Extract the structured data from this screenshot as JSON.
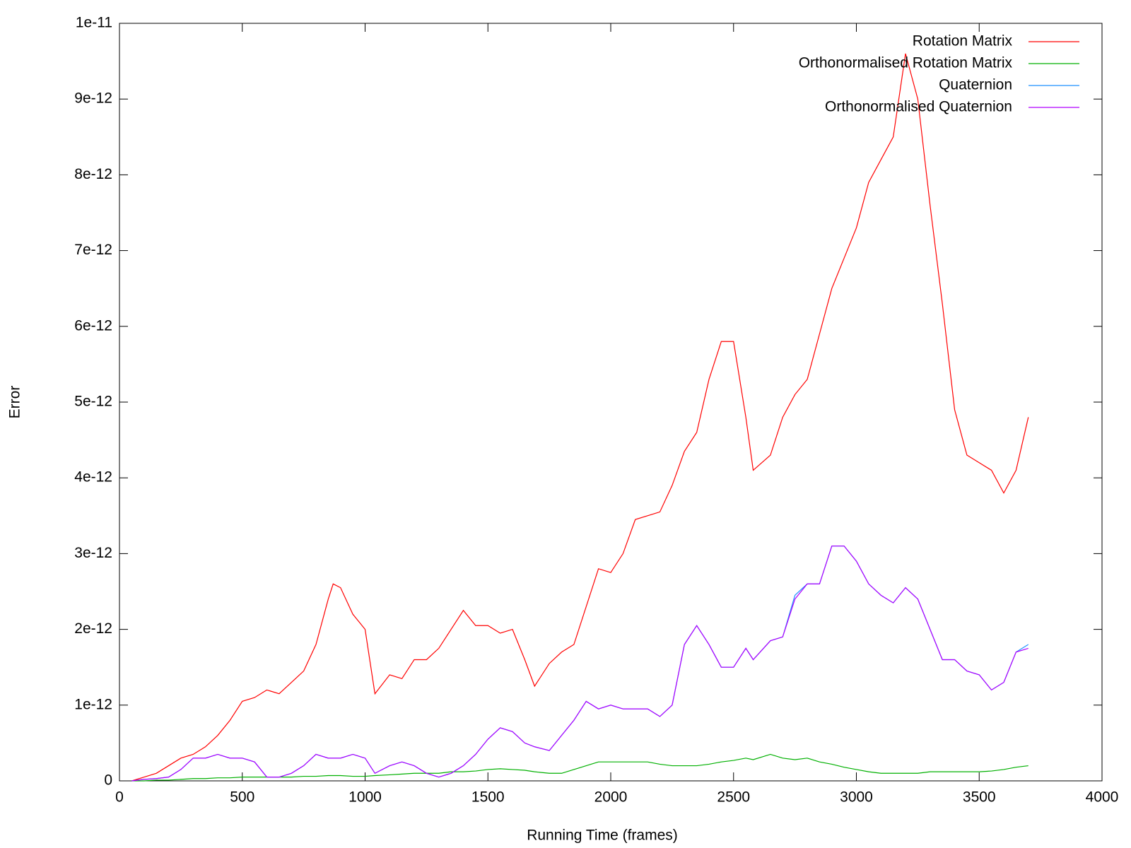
{
  "chart_data": {
    "type": "line",
    "xlabel": "Running Time (frames)",
    "ylabel": "Error",
    "xlim": [
      0,
      4000
    ],
    "xticks": [
      0,
      500,
      1000,
      1500,
      2000,
      2500,
      3000,
      3500,
      4000
    ],
    "ylim": [
      0,
      1e-11
    ],
    "yticks": [
      0,
      1e-12,
      2e-12,
      3e-12,
      4e-12,
      5e-12,
      6e-12,
      7e-12,
      8e-12,
      9e-12,
      1e-11
    ],
    "legend": "top-right",
    "grid": false,
    "x": [
      50,
      100,
      150,
      200,
      250,
      300,
      350,
      400,
      450,
      500,
      550,
      600,
      650,
      700,
      750,
      800,
      850,
      870,
      900,
      950,
      1000,
      1040,
      1100,
      1150,
      1200,
      1250,
      1300,
      1350,
      1400,
      1450,
      1500,
      1550,
      1600,
      1650,
      1690,
      1750,
      1800,
      1850,
      1900,
      1950,
      2000,
      2050,
      2100,
      2150,
      2200,
      2250,
      2300,
      2350,
      2400,
      2450,
      2500,
      2550,
      2580,
      2650,
      2700,
      2750,
      2800,
      2850,
      2900,
      2950,
      3000,
      3050,
      3100,
      3150,
      3200,
      3250,
      3300,
      3350,
      3400,
      3450,
      3500,
      3550,
      3600,
      3650,
      3700
    ],
    "series": [
      {
        "name": "Rotation Matrix",
        "color": "#ff0000",
        "values": [
          0,
          5e-14,
          1e-13,
          2e-13,
          3e-13,
          3.5e-13,
          4.5e-13,
          6e-13,
          8e-13,
          1.05e-12,
          1.1e-12,
          1.2e-12,
          1.15e-12,
          1.3e-12,
          1.45e-12,
          1.8e-12,
          2.4e-12,
          2.6e-12,
          2.55e-12,
          2.2e-12,
          2e-12,
          1.15e-12,
          1.4e-12,
          1.35e-12,
          1.6e-12,
          1.6e-12,
          1.75e-12,
          2e-12,
          2.25e-12,
          2.05e-12,
          2.05e-12,
          1.95e-12,
          2e-12,
          1.6e-12,
          1.25e-12,
          1.55e-12,
          1.7e-12,
          1.8e-12,
          2.3e-12,
          2.8e-12,
          2.75e-12,
          3e-12,
          3.45e-12,
          3.5e-12,
          3.55e-12,
          3.9e-12,
          4.35e-12,
          4.6e-12,
          5.3e-12,
          5.8e-12,
          5.8e-12,
          4.8e-12,
          4.1e-12,
          4.3e-12,
          4.8e-12,
          5.1e-12,
          5.3e-12,
          5.9e-12,
          6.5e-12,
          6.9e-12,
          7.3e-12,
          7.9e-12,
          8.2e-12,
          8.5e-12,
          9.6e-12,
          9e-12,
          7.6e-12,
          6.3e-12,
          4.9e-12,
          4.3e-12,
          4.2e-12,
          4.1e-12,
          3.8e-12,
          4.1e-12,
          4.8e-12
        ]
      },
      {
        "name": "Orthonormalised Rotation Matrix",
        "color": "#00b000",
        "values": [
          0,
          0,
          1e-14,
          1e-14,
          2e-14,
          3e-14,
          3e-14,
          4e-14,
          4e-14,
          5e-14,
          5e-14,
          5e-14,
          5e-14,
          5e-14,
          6e-14,
          6e-14,
          7e-14,
          7e-14,
          7e-14,
          6e-14,
          6e-14,
          7e-14,
          8e-14,
          9e-14,
          1e-13,
          1e-13,
          1e-13,
          1.2e-13,
          1.2e-13,
          1.3e-13,
          1.5e-13,
          1.6e-13,
          1.5e-13,
          1.4e-13,
          1.2e-13,
          1e-13,
          1e-13,
          1.5e-13,
          2e-13,
          2.5e-13,
          2.5e-13,
          2.5e-13,
          2.5e-13,
          2.5e-13,
          2.2e-13,
          2e-13,
          2e-13,
          2e-13,
          2.2e-13,
          2.5e-13,
          2.7e-13,
          3e-13,
          2.8e-13,
          3.5e-13,
          3e-13,
          2.8e-13,
          3e-13,
          2.5e-13,
          2.2e-13,
          1.8e-13,
          1.5e-13,
          1.2e-13,
          1e-13,
          1e-13,
          1e-13,
          1e-13,
          1.2e-13,
          1.2e-13,
          1.2e-13,
          1.2e-13,
          1.2e-13,
          1.3e-13,
          1.5e-13,
          1.8e-13,
          2e-13
        ]
      },
      {
        "name": "Quaternion",
        "color": "#1e90ff",
        "values": [
          0,
          2e-14,
          3e-14,
          5e-14,
          1.5e-13,
          3e-13,
          3e-13,
          3.5e-13,
          3e-13,
          3e-13,
          2.5e-13,
          5e-14,
          5e-14,
          1e-13,
          2e-13,
          3.5e-13,
          3e-13,
          3e-13,
          3e-13,
          3.5e-13,
          3e-13,
          1e-13,
          2e-13,
          2.5e-13,
          2e-13,
          1e-13,
          5e-14,
          1e-13,
          2e-13,
          3.5e-13,
          5.5e-13,
          7e-13,
          6.5e-13,
          5e-13,
          4.5e-13,
          4e-13,
          6e-13,
          8e-13,
          1.05e-12,
          9.5e-13,
          1e-12,
          9.5e-13,
          9.5e-13,
          9.5e-13,
          8.5e-13,
          1e-12,
          1.8e-12,
          2.05e-12,
          1.8e-12,
          1.5e-12,
          1.5e-12,
          1.75e-12,
          1.6e-12,
          1.85e-12,
          1.9e-12,
          2.45e-12,
          2.6e-12,
          2.6e-12,
          3.1e-12,
          3.1e-12,
          2.9e-12,
          2.6e-12,
          2.45e-12,
          2.35e-12,
          2.55e-12,
          2.4e-12,
          2e-12,
          1.6e-12,
          1.6e-12,
          1.45e-12,
          1.4e-12,
          1.2e-12,
          1.3e-12,
          1.7e-12,
          1.8e-12
        ]
      },
      {
        "name": "Orthonormalised Quaternion",
        "color": "#b000ff",
        "values": [
          0,
          2e-14,
          3e-14,
          5e-14,
          1.5e-13,
          3e-13,
          3e-13,
          3.5e-13,
          3e-13,
          3e-13,
          2.5e-13,
          5e-14,
          5e-14,
          1e-13,
          2e-13,
          3.5e-13,
          3e-13,
          3e-13,
          3e-13,
          3.5e-13,
          3e-13,
          1e-13,
          2e-13,
          2.5e-13,
          2e-13,
          1e-13,
          5e-14,
          1e-13,
          2e-13,
          3.5e-13,
          5.5e-13,
          7e-13,
          6.5e-13,
          5e-13,
          4.5e-13,
          4e-13,
          6e-13,
          8e-13,
          1.05e-12,
          9.5e-13,
          1e-12,
          9.5e-13,
          9.5e-13,
          9.5e-13,
          8.5e-13,
          1e-12,
          1.8e-12,
          2.05e-12,
          1.8e-12,
          1.5e-12,
          1.5e-12,
          1.75e-12,
          1.6e-12,
          1.85e-12,
          1.9e-12,
          2.4e-12,
          2.6e-12,
          2.6e-12,
          3.1e-12,
          3.1e-12,
          2.9e-12,
          2.6e-12,
          2.45e-12,
          2.35e-12,
          2.55e-12,
          2.4e-12,
          2e-12,
          1.6e-12,
          1.6e-12,
          1.45e-12,
          1.4e-12,
          1.2e-12,
          1.3e-12,
          1.7e-12,
          1.75e-12
        ]
      }
    ]
  }
}
